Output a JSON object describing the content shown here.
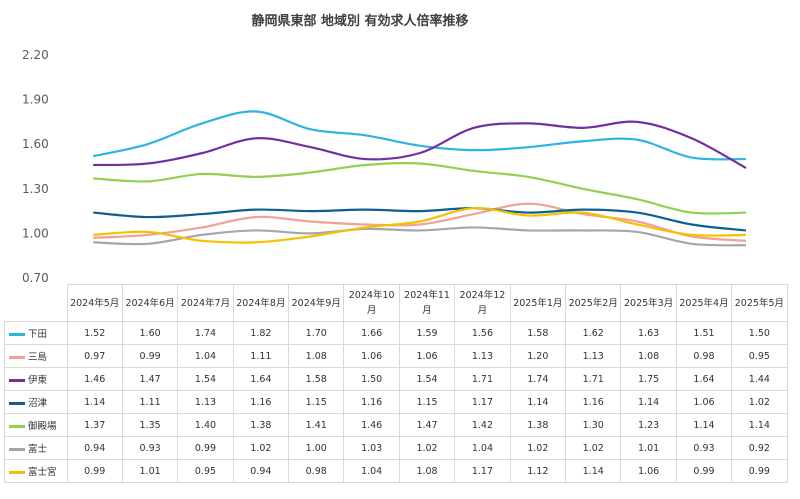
{
  "chart_data": {
    "type": "line",
    "title": "静岡県東部 地域別 有効求人倍率推移",
    "categories": [
      "2024年5月",
      "2024年6月",
      "2024年7月",
      "2024年8月",
      "2024年9月",
      "2024年10月",
      "2024年11月",
      "2024年12月",
      "2025年1月",
      "2025年2月",
      "2025年3月",
      "2025年4月",
      "2025年5月"
    ],
    "ylim": [
      0.7,
      2.2
    ],
    "yticks": [
      "2.20",
      "1.90",
      "1.60",
      "1.30",
      "1.00",
      "0.70"
    ],
    "grid": false,
    "legend": "data-table",
    "series": [
      {
        "name": "下田",
        "color": "#2bb5e0",
        "values": [
          1.52,
          1.6,
          1.74,
          1.82,
          1.7,
          1.66,
          1.59,
          1.56,
          1.58,
          1.62,
          1.63,
          1.51,
          1.5
        ]
      },
      {
        "name": "三島",
        "color": "#f2a09a",
        "values": [
          0.97,
          0.99,
          1.04,
          1.11,
          1.08,
          1.06,
          1.06,
          1.13,
          1.2,
          1.13,
          1.08,
          0.98,
          0.95
        ]
      },
      {
        "name": "伊東",
        "color": "#7030a0",
        "values": [
          1.46,
          1.47,
          1.54,
          1.64,
          1.58,
          1.5,
          1.54,
          1.71,
          1.74,
          1.71,
          1.75,
          1.64,
          1.44
        ]
      },
      {
        "name": "沼津",
        "color": "#0f5f96",
        "values": [
          1.14,
          1.11,
          1.13,
          1.16,
          1.15,
          1.16,
          1.15,
          1.17,
          1.14,
          1.16,
          1.14,
          1.06,
          1.02
        ]
      },
      {
        "name": "御殿場",
        "color": "#92d050",
        "values": [
          1.37,
          1.35,
          1.4,
          1.38,
          1.41,
          1.46,
          1.47,
          1.42,
          1.38,
          1.3,
          1.23,
          1.14,
          1.14
        ]
      },
      {
        "name": "富士",
        "color": "#a6a6a6",
        "values": [
          0.94,
          0.93,
          0.99,
          1.02,
          1.0,
          1.03,
          1.02,
          1.04,
          1.02,
          1.02,
          1.01,
          0.93,
          0.92
        ]
      },
      {
        "name": "富士宮",
        "color": "#f2c200",
        "values": [
          0.99,
          1.01,
          0.95,
          0.94,
          0.98,
          1.04,
          1.08,
          1.17,
          1.12,
          1.14,
          1.06,
          0.99,
          0.99
        ]
      }
    ]
  }
}
